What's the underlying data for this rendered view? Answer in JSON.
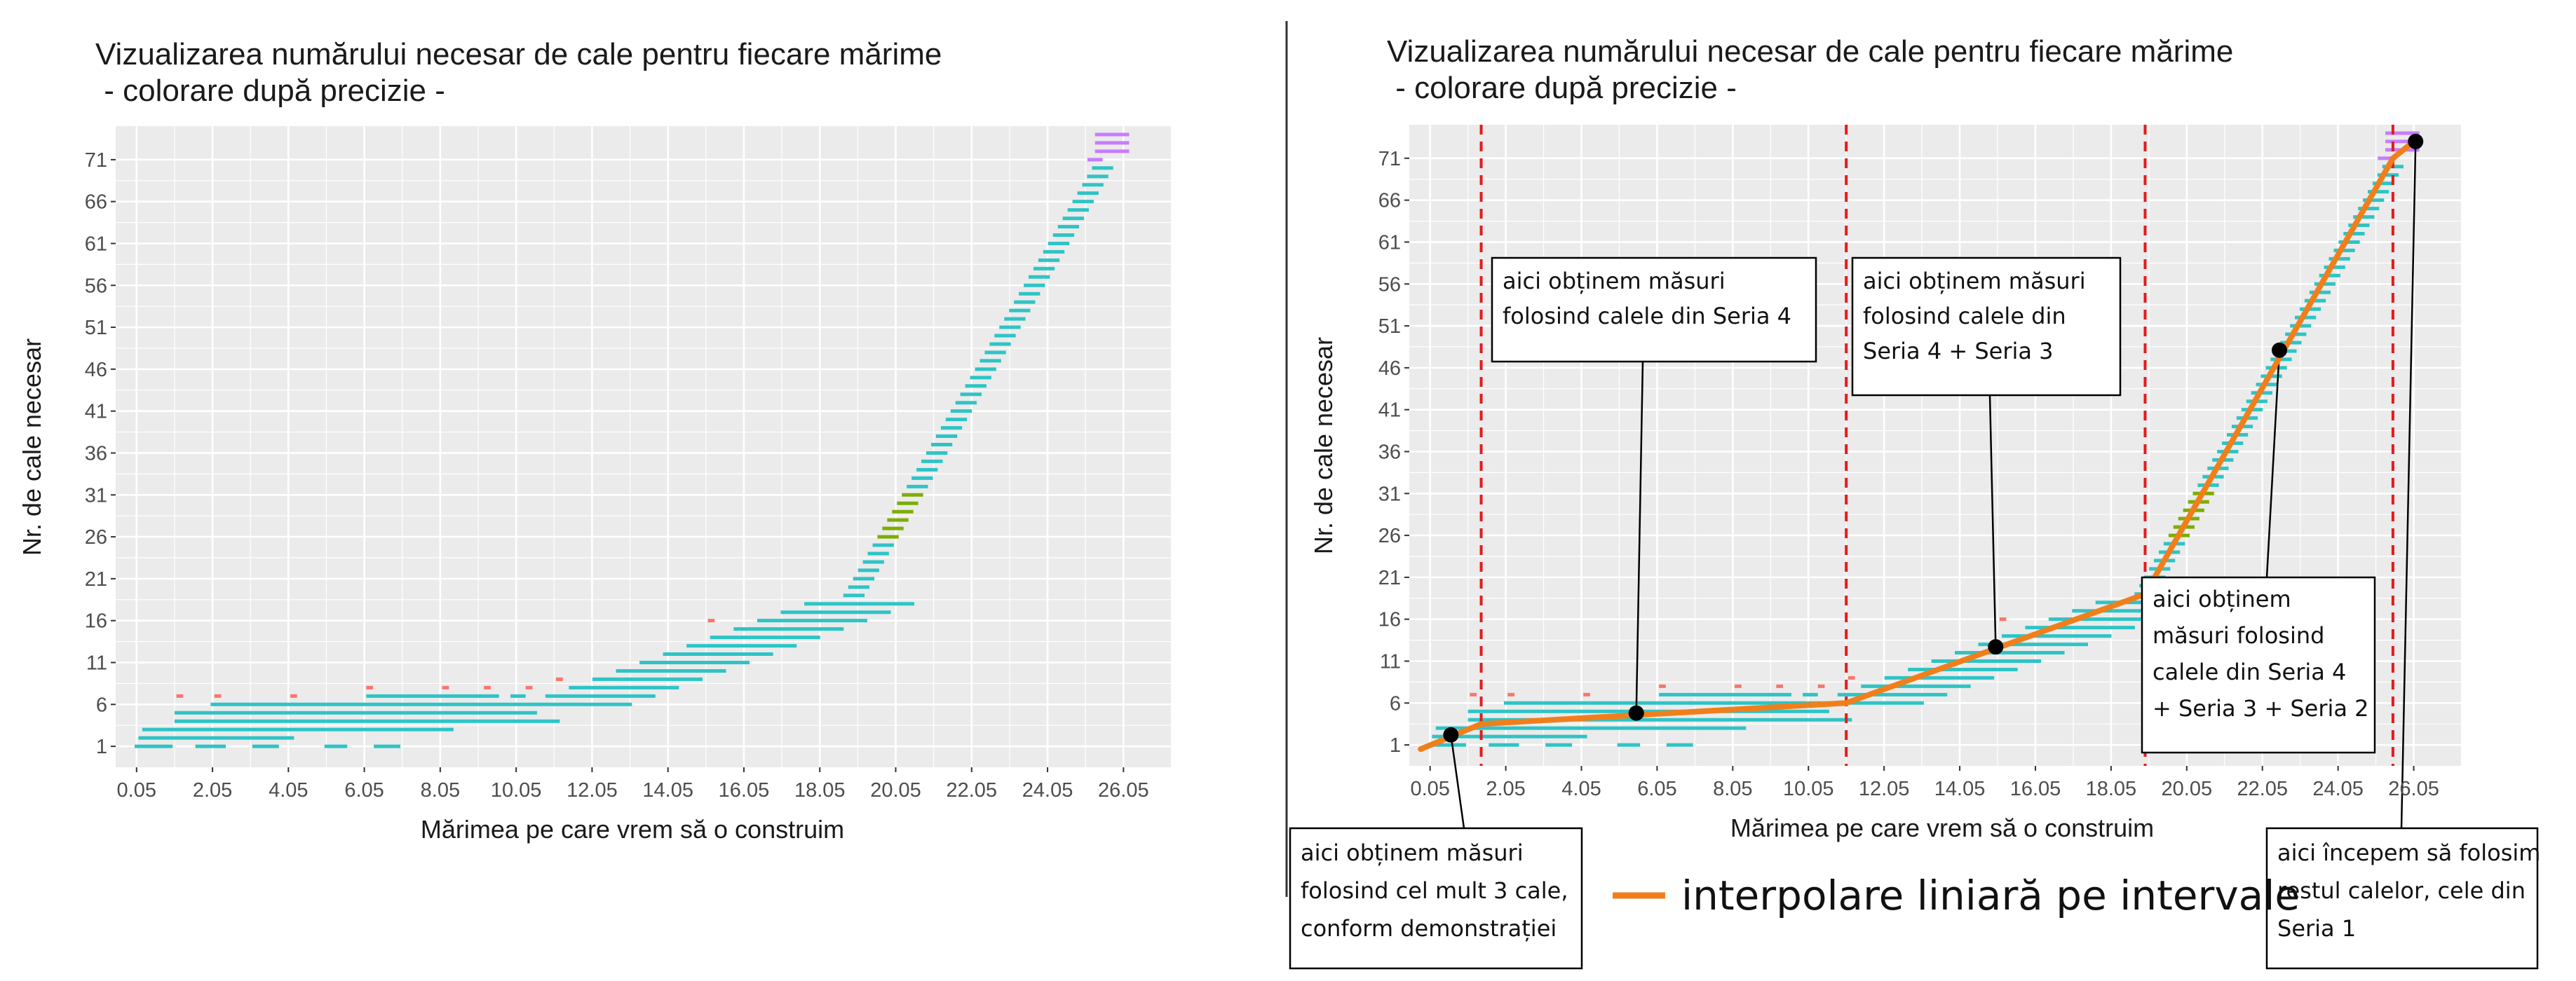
{
  "colors": {
    "panel_bg": "#ebebeb",
    "grid": "#ffffff",
    "main_series": "#2ec4c6",
    "red_marks": "#f8766d",
    "green_marks": "#7cae00",
    "purple_marks": "#c77cff",
    "interpolation_line": "#f07f1b",
    "vertical_dividers": "#e41a1c",
    "points": "#000000"
  },
  "chart_data": [
    {
      "type": "scatter",
      "title": "Vizualizarea numărului necesar de cale pentru fiecare mărime",
      "subtitle": " - colorare după precizie -",
      "xlabel": "Mărimea pe care vrem să o construim",
      "ylabel": "Nr. de cale necesar",
      "xlim": [
        -0.5,
        27.3
      ],
      "ylim": [
        -1.5,
        75
      ],
      "x_ticks": [
        "0.05",
        "2.05",
        "4.05",
        "6.05",
        "8.05",
        "10.05",
        "12.05",
        "14.05",
        "16.05",
        "18.05",
        "20.05",
        "22.05",
        "24.05",
        "26.05"
      ],
      "y_ticks": [
        "1",
        "6",
        "11",
        "16",
        "21",
        "26",
        "31",
        "36",
        "41",
        "46",
        "51",
        "56",
        "61",
        "66",
        "71"
      ],
      "grid": true,
      "legend": "none"
    },
    {
      "type": "scatter",
      "title": "Vizualizarea numărului necesar de cale pentru fiecare mărime",
      "subtitle": " - colorare după precizie -",
      "xlabel": "Mărimea pe care vrem să o construim",
      "ylabel": "Nr. de cale necesar",
      "xlim": [
        -0.5,
        27.3
      ],
      "ylim": [
        -1.5,
        75
      ],
      "x_ticks": [
        "0.05",
        "2.05",
        "4.05",
        "6.05",
        "8.05",
        "10.05",
        "12.05",
        "14.05",
        "16.05",
        "18.05",
        "20.05",
        "22.05",
        "24.05",
        "26.05"
      ],
      "y_ticks": [
        "1",
        "6",
        "11",
        "16",
        "21",
        "26",
        "31",
        "36",
        "41",
        "46",
        "51",
        "56",
        "61",
        "66",
        "71"
      ],
      "grid": true,
      "vertical_lines_x": [
        1.4,
        11.05,
        18.95,
        25.5
      ],
      "interpolation": {
        "legend_label": "interpolare liniară pe intervale",
        "x": [
          -0.2,
          1.4,
          11.05,
          18.95,
          25.5,
          26.05
        ],
        "y": [
          0.5,
          3.5,
          6,
          19,
          71,
          73
        ]
      },
      "points": [
        {
          "x": 0.6,
          "y": 2.2
        },
        {
          "x": 5.5,
          "y": 4.8
        },
        {
          "x": 15.0,
          "y": 12.7
        },
        {
          "x": 22.5,
          "y": 48.1
        },
        {
          "x": 26.1,
          "y": 73.0
        }
      ],
      "annotations": [
        {
          "lines": [
            "aici obținem măsuri",
            "folosind calele din Seria 4"
          ]
        },
        {
          "lines": [
            "aici obținem măsuri",
            "folosind calele din",
            "Seria 4 + Seria 3"
          ]
        },
        {
          "lines": [
            "aici obținem",
            "măsuri folosind",
            "calele din Seria 4",
            "+ Seria 3 + Seria 2"
          ]
        },
        {
          "lines": [
            "aici obținem măsuri",
            "folosind cel mult 3 cale,",
            "conform demonstrației"
          ]
        },
        {
          "lines": [
            "aici începem să folosim",
            "restul calelor, cele din",
            "Seria 1"
          ]
        }
      ]
    }
  ]
}
